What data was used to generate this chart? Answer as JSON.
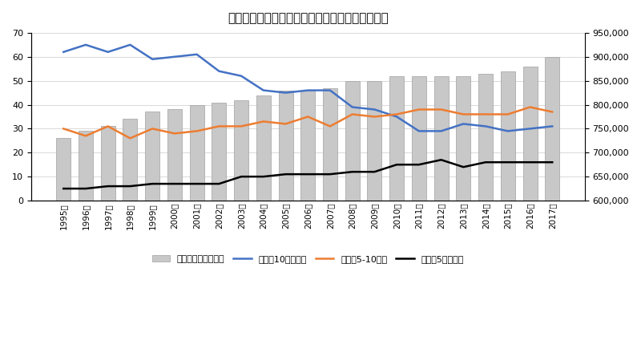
{
  "title": "下宿生の仕送り金額と授業料（私立大学）の推移",
  "year_labels": [
    "1995年",
    "1996年",
    "1997年",
    "1998年",
    "1999年",
    "2000年",
    "2001年",
    "2002年",
    "2003年",
    "2004年",
    "2005年",
    "2006年",
    "2007年",
    "2008年",
    "2009年",
    "2010年",
    "2011年",
    "2012年",
    "2013年",
    "2014年",
    "2015年",
    "2016年",
    "2017年"
  ],
  "tuition_left": [
    26,
    29,
    31,
    34,
    37,
    38,
    40,
    41,
    42,
    44,
    46,
    46,
    47,
    50,
    50,
    52,
    52,
    52,
    52,
    53,
    54,
    56,
    60
  ],
  "remittance_10plus": [
    62,
    65,
    62,
    65,
    59,
    60,
    61,
    54,
    52,
    46,
    45,
    46,
    46,
    39,
    38,
    35,
    29,
    29,
    32,
    31,
    29,
    30,
    31
  ],
  "remittance_5to10": [
    30,
    27,
    31,
    26,
    30,
    28,
    29,
    31,
    31,
    33,
    32,
    35,
    31,
    36,
    35,
    36,
    38,
    38,
    36,
    36,
    36,
    39,
    37
  ],
  "remittance_under5": [
    5,
    5,
    6,
    6,
    7,
    7,
    7,
    7,
    10,
    10,
    11,
    11,
    11,
    12,
    12,
    15,
    15,
    17,
    14,
    16,
    16,
    16,
    16
  ],
  "bar_color": "#c8c8c8",
  "bar_edge_color": "#a0a0a0",
  "line_color_blue": "#4472c4",
  "line_color_orange": "#ed7d31",
  "line_color_black": "#000000",
  "ylim_left": [
    0,
    70
  ],
  "ylim_right": [
    600000,
    950000
  ],
  "yticks_left": [
    0,
    10,
    20,
    30,
    40,
    50,
    60,
    70
  ],
  "yticks_right": [
    600000,
    650000,
    700000,
    750000,
    800000,
    850000,
    900000,
    950000
  ],
  "legend_labels": [
    "授業料（私立大学）",
    "仕送り10万円以上",
    "仕送り5-10万円",
    "仕送り5万円未満"
  ]
}
